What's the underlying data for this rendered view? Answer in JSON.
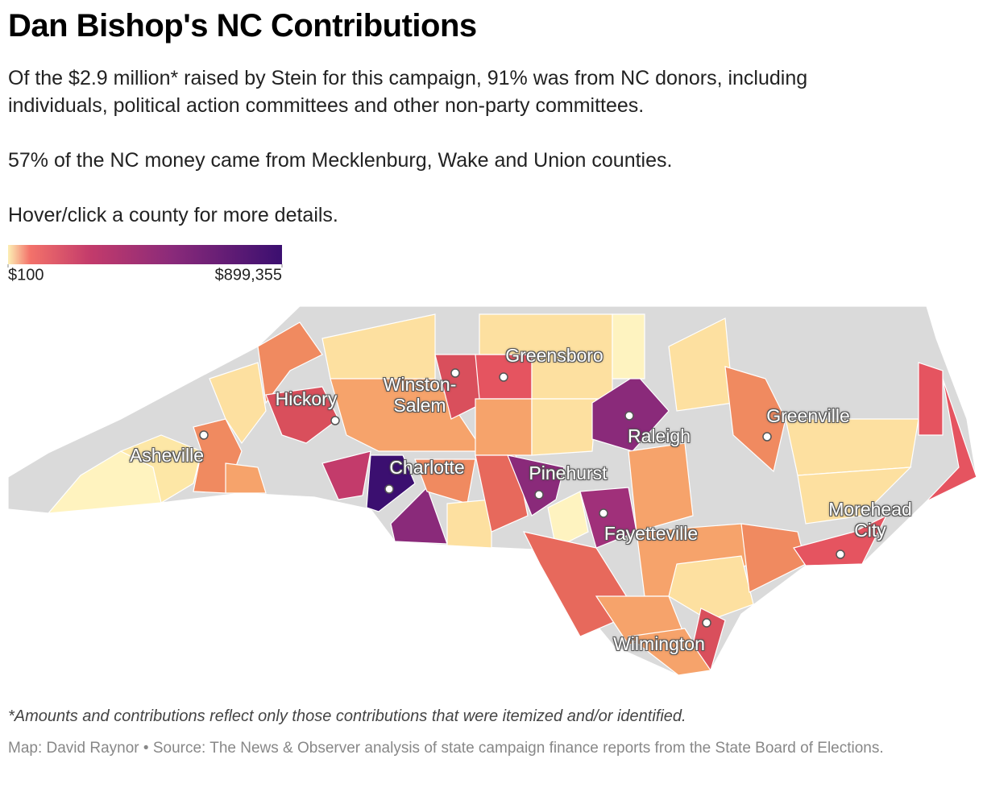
{
  "header": {
    "title": "Dan Bishop's NC Contributions",
    "paragraphs": [
      "Of the $2.9 million* raised by Stein for this campaign, 91% was from NC donors, including individuals, political action committees and other non-party committees.",
      "57% of the NC money came from Mecklenburg, Wake and Union counties.",
      "Hover/click a county for more details."
    ]
  },
  "legend": {
    "ticks": [
      {
        "value": 100,
        "label": "$100"
      },
      {
        "value": 899355,
        "label": "$899,355"
      }
    ]
  },
  "cities": [
    {
      "label": "Greensboro"
    },
    {
      "label": "Hickory"
    },
    {
      "label": "Winston-Salem"
    },
    {
      "label": "Asheville"
    },
    {
      "label": "Raleigh"
    },
    {
      "label": "Charlotte"
    },
    {
      "label": "Pinehurst"
    },
    {
      "label": "Greenville"
    },
    {
      "label": "Fayetteville"
    },
    {
      "label": "Morehead City"
    },
    {
      "label": "Wilmington"
    }
  ],
  "footer": {
    "note": "*Amounts and contributions reflect only those contributions that were itemized and/or identified.",
    "source": "Map: David Raynor • Source: The News & Observer analysis of state campaign finance reports from the State Board of Elections."
  }
}
